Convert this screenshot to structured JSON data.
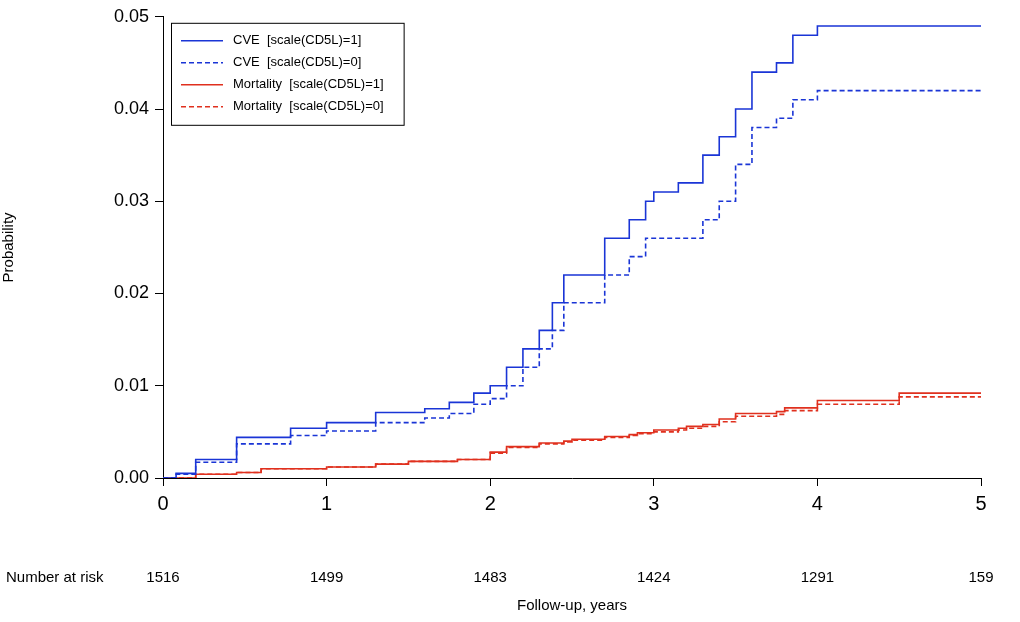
{
  "chart_data": {
    "type": "line",
    "x_label": "Follow-up, years",
    "y_label": "Probability",
    "x": [
      0,
      0.08,
      0.2,
      0.45,
      0.6,
      0.78,
      1.0,
      1.3,
      1.5,
      1.6,
      1.75,
      1.8,
      1.9,
      2.0,
      2.1,
      2.2,
      2.3,
      2.38,
      2.45,
      2.5,
      2.6,
      2.7,
      2.85,
      2.9,
      2.95,
      3.0,
      3.15,
      3.2,
      3.3,
      3.4,
      3.5,
      3.6,
      3.75,
      3.8,
      3.85,
      4.0,
      4.5,
      5.0
    ],
    "series": [
      {
        "name": "CVE  [scale(CD5L)=1]",
        "color": "#1a35d6",
        "line_style": "solid",
        "values": [
          0,
          0.0005,
          0.002,
          0.0044,
          0.0044,
          0.0054,
          0.006,
          0.0071,
          0.0071,
          0.0075,
          0.0082,
          0.0082,
          0.0092,
          0.01,
          0.012,
          0.014,
          0.016,
          0.019,
          0.022,
          0.022,
          0.022,
          0.026,
          0.028,
          0.028,
          0.03,
          0.031,
          0.032,
          0.032,
          0.035,
          0.037,
          0.04,
          0.044,
          0.045,
          0.045,
          0.048,
          0.049,
          0.049,
          0.049
        ]
      },
      {
        "name": "CVE  [scale(CD5L)=0]",
        "color": "#1a35d6",
        "line_style": "dashed",
        "values": [
          0,
          0.0004,
          0.0017,
          0.0037,
          0.0037,
          0.0046,
          0.0051,
          0.006,
          0.006,
          0.0065,
          0.007,
          0.007,
          0.008,
          0.0086,
          0.01,
          0.012,
          0.014,
          0.016,
          0.019,
          0.019,
          0.019,
          0.022,
          0.024,
          0.024,
          0.026,
          0.026,
          0.026,
          0.026,
          0.028,
          0.03,
          0.034,
          0.038,
          0.039,
          0.039,
          0.041,
          0.042,
          0.042,
          0.042
        ]
      },
      {
        "name": "Mortality  [scale(CD5L)=1]",
        "color": "#e0301e",
        "line_style": "solid",
        "values": [
          0,
          0,
          0.0004,
          0.0006,
          0.001,
          0.001,
          0.0012,
          0.0015,
          0.0018,
          0.0018,
          0.0018,
          0.002,
          0.002,
          0.0028,
          0.0034,
          0.0034,
          0.0038,
          0.0038,
          0.004,
          0.0042,
          0.0042,
          0.0045,
          0.0047,
          0.0049,
          0.0049,
          0.0052,
          0.0054,
          0.0056,
          0.0058,
          0.0064,
          0.007,
          0.007,
          0.0072,
          0.0076,
          0.0076,
          0.0084,
          0.0092,
          0.0092
        ]
      },
      {
        "name": "Mortality  [scale(CD5L)=0]",
        "color": "#e0301e",
        "line_style": "dashed",
        "values": [
          0,
          0,
          0.0004,
          0.0006,
          0.001,
          0.001,
          0.0012,
          0.0015,
          0.0018,
          0.0018,
          0.0018,
          0.002,
          0.002,
          0.0027,
          0.0033,
          0.0033,
          0.0037,
          0.0037,
          0.0039,
          0.0041,
          0.0041,
          0.0044,
          0.0046,
          0.0048,
          0.0048,
          0.005,
          0.0052,
          0.0054,
          0.0056,
          0.0061,
          0.0067,
          0.0067,
          0.0069,
          0.0073,
          0.0073,
          0.008,
          0.0088,
          0.0088
        ]
      }
    ],
    "xlim": [
      0,
      5
    ],
    "xticks": [
      0,
      1,
      2,
      3,
      4,
      5
    ],
    "ylim": [
      0,
      0.05
    ],
    "yticks": [
      {
        "value": 0,
        "label": "0.00"
      },
      {
        "value": 0.01,
        "label": "0.01"
      },
      {
        "value": 0.02,
        "label": "0.02"
      },
      {
        "value": 0.03,
        "label": "0.03"
      },
      {
        "value": 0.04,
        "label": "0.04"
      },
      {
        "value": 0.05,
        "label": "0.05"
      }
    ],
    "grid": false,
    "legend": "top-left",
    "number_at_risk": {
      "label": "Number at risk",
      "x": [
        0,
        1,
        2,
        3,
        4,
        5
      ],
      "values": [
        1516,
        1499,
        1483,
        1424,
        1291,
        159
      ]
    }
  }
}
